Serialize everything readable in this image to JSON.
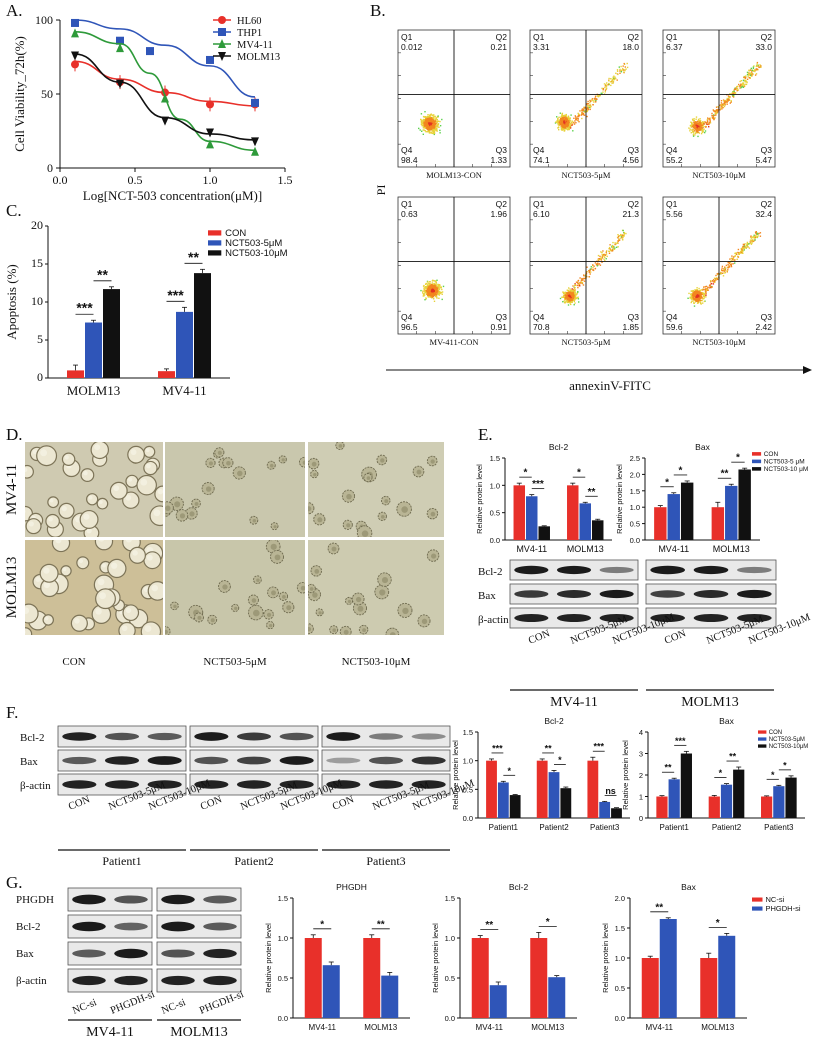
{
  "figure": {
    "panel_labels": {
      "A": "A.",
      "B": "B.",
      "C": "C.",
      "D": "D.",
      "E": "E.",
      "F": "F.",
      "G": "G."
    }
  },
  "panel_a": {
    "chart_data": {
      "type": "line",
      "title": "",
      "xlabel": "Log[NCT-503 concentration(μM)]",
      "ylabel": "Cell Viability_72h(%)",
      "xlim": [
        0,
        1.5
      ],
      "ylim": [
        0,
        100
      ],
      "x_ticks": [
        "0.0",
        "0.5",
        "1.0",
        "1.5"
      ],
      "y_ticks": [
        "0",
        "50",
        "100"
      ],
      "legend_position": "top-right",
      "series": [
        {
          "name": "HL60",
          "color": "#e8302a",
          "marker": "circle",
          "x": [
            0.1,
            0.4,
            0.7,
            1.0,
            1.3
          ],
          "y": [
            70,
            58,
            51,
            43,
            43
          ],
          "fit": [
            [
              0.1,
              72
            ],
            [
              0.4,
              60
            ],
            [
              0.7,
              51
            ],
            [
              1.0,
              45
            ],
            [
              1.3,
              42
            ]
          ]
        },
        {
          "name": "THP1",
          "color": "#2f55b8",
          "marker": "square",
          "x": [
            0.1,
            0.4,
            0.6,
            1.0,
            1.3
          ],
          "y": [
            98,
            86,
            79,
            73,
            44
          ],
          "fit": [
            [
              0.1,
              100
            ],
            [
              0.4,
              94
            ],
            [
              0.7,
              83
            ],
            [
              1.0,
              69
            ],
            [
              1.3,
              48
            ]
          ]
        },
        {
          "name": "MV4-11",
          "color": "#2e9a3a",
          "marker": "triangle-up",
          "x": [
            0.1,
            0.4,
            0.7,
            1.0,
            1.3
          ],
          "y": [
            91,
            81,
            47,
            16,
            11
          ],
          "fit": [
            [
              0.1,
              92
            ],
            [
              0.4,
              84
            ],
            [
              0.6,
              64
            ],
            [
              0.8,
              33
            ],
            [
              1.0,
              18
            ],
            [
              1.3,
              12
            ]
          ]
        },
        {
          "name": "MOLM13",
          "color": "#111111",
          "marker": "triangle-down",
          "x": [
            0.1,
            0.4,
            0.7,
            1.0,
            1.3
          ],
          "y": [
            76,
            57,
            32,
            24,
            18
          ],
          "fit": [
            [
              0.1,
              77
            ],
            [
              0.4,
              58
            ],
            [
              0.7,
              34
            ],
            [
              1.0,
              23
            ],
            [
              1.3,
              19
            ]
          ]
        }
      ]
    }
  },
  "panel_b": {
    "xlabel": "annexinV-FITC",
    "ylabel": "PI",
    "plots": [
      {
        "label": "MOLM13-CON",
        "q1": "0.012",
        "q2": "0.21",
        "q3": "1.33",
        "q4": "98.4"
      },
      {
        "label": "NCT503-5μM",
        "q1": "3.31",
        "q2": "18.0",
        "q3": "4.56",
        "q4": "74.1"
      },
      {
        "label": "NCT503-10μM",
        "q1": "6.37",
        "q2": "33.0",
        "q3": "5.47",
        "q4": "55.2"
      },
      {
        "label": "MV-411-CON",
        "q1": "0.63",
        "q2": "1.96",
        "q3": "0.91",
        "q4": "96.5"
      },
      {
        "label": "NCT503-5μM",
        "q1": "6.10",
        "q2": "21.3",
        "q3": "1.85",
        "q4": "70.8"
      },
      {
        "label": "NCT503-10μM",
        "q1": "5.56",
        "q2": "32.4",
        "q3": "2.42",
        "q4": "59.6"
      }
    ],
    "quadrant_names": [
      "Q1",
      "Q2",
      "Q3",
      "Q4"
    ]
  },
  "panel_c": {
    "chart_data": {
      "type": "bar",
      "ylabel": "Apoptosis (%)",
      "ylim": [
        0,
        20
      ],
      "y_ticks": [
        "0",
        "5",
        "10",
        "15",
        "20"
      ],
      "categories": [
        "MOLM13",
        "MV4-11"
      ],
      "series": [
        {
          "name": "CON",
          "color": "#e8302a",
          "values": [
            1.0,
            0.9
          ],
          "errors": [
            0.7,
            0.3
          ]
        },
        {
          "name": "NCT503-5μM",
          "color": "#2f55b8",
          "values": [
            7.3,
            8.7
          ],
          "errors": [
            0.3,
            0.6
          ]
        },
        {
          "name": "NCT503-10μM",
          "color": "#111111",
          "values": [
            11.7,
            13.8
          ],
          "errors": [
            0.3,
            0.5
          ]
        }
      ],
      "significance": [
        [
          "***",
          "**"
        ],
        [
          "***",
          "**"
        ]
      ]
    }
  },
  "panel_d": {
    "row_labels": [
      "MV4-11",
      "MOLM13"
    ],
    "col_labels": [
      "CON",
      "NCT503-5μM",
      "NCT503-10μM"
    ]
  },
  "panel_e": {
    "charts": [
      {
        "chart_data": {
          "type": "bar",
          "title": "Bcl-2",
          "ylabel": "Relative protein level",
          "ylim": [
            0,
            1.5
          ],
          "y_ticks": [
            "0.0",
            "0.5",
            "1.0",
            "1.5"
          ],
          "categories": [
            "MV4-11",
            "MOLM13"
          ],
          "series": [
            {
              "name": "CON",
              "color": "#e8302a",
              "values": [
                1.0,
                1.0
              ],
              "errors": [
                0.04,
                0.04
              ]
            },
            {
              "name": "NCT503-5μM",
              "color": "#2f55b8",
              "values": [
                0.8,
                0.67
              ],
              "errors": [
                0.03,
                0.02
              ]
            },
            {
              "name": "NCT503-10μM",
              "color": "#111111",
              "values": [
                0.25,
                0.36
              ],
              "errors": [
                0.01,
                0.02
              ]
            }
          ],
          "significance": [
            [
              "*",
              "***"
            ],
            [
              "*",
              "**"
            ]
          ]
        }
      },
      {
        "chart_data": {
          "type": "bar",
          "title": "Bax",
          "ylabel": "Relative protein level",
          "ylim": [
            0,
            2.5
          ],
          "y_ticks": [
            "0.0",
            "0.5",
            "1.0",
            "1.5",
            "2.0",
            "2.5"
          ],
          "categories": [
            "MV4-11",
            "MOLM13"
          ],
          "series": [
            {
              "name": "CON",
              "color": "#e8302a",
              "values": [
                1.0,
                1.0
              ],
              "errors": [
                0.05,
                0.15
              ]
            },
            {
              "name": "NCT503-5μM",
              "color": "#2f55b8",
              "values": [
                1.4,
                1.65
              ],
              "errors": [
                0.04,
                0.05
              ]
            },
            {
              "name": "NCT503-10μM",
              "color": "#111111",
              "values": [
                1.75,
                2.15
              ],
              "errors": [
                0.05,
                0.04
              ]
            }
          ],
          "significance": [
            [
              "*",
              "*"
            ],
            [
              "**",
              "*"
            ]
          ]
        }
      }
    ],
    "legend": [
      "CON",
      "NCT503-5 μM",
      "NCT503-10 μM"
    ],
    "blot_rows": [
      "Bcl-2",
      "Bax",
      "β-actin"
    ],
    "lanes": [
      "CON",
      "NCT503-5μM",
      "NCT503-10μM"
    ],
    "groups": [
      "MV4-11",
      "MOLM13"
    ]
  },
  "panel_f": {
    "blot_rows": [
      "Bcl-2",
      "Bax",
      "β-actin"
    ],
    "lanes": [
      "CON",
      "NCT503-5μM",
      "NCT503-10μM"
    ],
    "groups": [
      "Patient1",
      "Patient2",
      "Patient3"
    ],
    "charts": [
      {
        "chart_data": {
          "type": "bar",
          "title": "Bcl-2",
          "ylabel": "Relative protein level",
          "ylim": [
            0,
            1.5
          ],
          "y_ticks": [
            "0.0",
            "0.5",
            "1.0",
            "1.5"
          ],
          "categories": [
            "Patient1",
            "Patient2",
            "Patient3"
          ],
          "series": [
            {
              "name": "CON",
              "color": "#e8302a",
              "values": [
                1.0,
                1.0,
                1.0
              ],
              "errors": [
                0.03,
                0.03,
                0.06
              ]
            },
            {
              "name": "NCT503-5μM",
              "color": "#2f55b8",
              "values": [
                0.62,
                0.8,
                0.28
              ],
              "errors": [
                0.02,
                0.03,
                0.01
              ]
            },
            {
              "name": "NCT503-10μM",
              "color": "#111111",
              "values": [
                0.4,
                0.52,
                0.17
              ],
              "errors": [
                0.01,
                0.02,
                0.01
              ]
            }
          ],
          "significance": [
            [
              "***",
              "*"
            ],
            [
              "**",
              "*"
            ],
            [
              "***",
              "ns"
            ]
          ]
        }
      },
      {
        "chart_data": {
          "type": "bar",
          "title": "Bax",
          "ylabel": "Relative protein level",
          "ylim": [
            0,
            4
          ],
          "y_ticks": [
            "0",
            "1",
            "2",
            "3",
            "4"
          ],
          "categories": [
            "Patient1",
            "Patient2",
            "Patient3"
          ],
          "series": [
            {
              "name": "CON",
              "color": "#e8302a",
              "values": [
                1.0,
                1.0,
                1.0
              ],
              "errors": [
                0.04,
                0.05,
                0.03
              ]
            },
            {
              "name": "NCT503-5μM",
              "color": "#2f55b8",
              "values": [
                1.8,
                1.55,
                1.48
              ],
              "errors": [
                0.05,
                0.05,
                0.04
              ]
            },
            {
              "name": "NCT503-10μM",
              "color": "#111111",
              "values": [
                3.0,
                2.25,
                1.88
              ],
              "errors": [
                0.1,
                0.12,
                0.08
              ]
            }
          ],
          "significance": [
            [
              "**",
              "***"
            ],
            [
              "*",
              "**"
            ],
            [
              "*",
              "*"
            ]
          ]
        }
      }
    ],
    "legend": [
      "CON",
      "NCT503-5μM",
      "NCT503-10μM"
    ]
  },
  "panel_g": {
    "blot_rows": [
      "PHGDH",
      "Bcl-2",
      "Bax",
      "β-actin"
    ],
    "lanes": [
      "NC-si",
      "PHGDH-si"
    ],
    "groups": [
      "MV4-11",
      "MOLM13"
    ],
    "charts": [
      {
        "chart_data": {
          "type": "bar",
          "title": "PHGDH",
          "ylabel": "Relative protein level",
          "ylim": [
            0,
            1.5
          ],
          "y_ticks": [
            "0.0",
            "0.5",
            "1.0",
            "1.5"
          ],
          "categories": [
            "MV4-11",
            "MOLM13"
          ],
          "series": [
            {
              "name": "NC-si",
              "color": "#e8302a",
              "values": [
                1.0,
                1.0
              ],
              "errors": [
                0.04,
                0.04
              ]
            },
            {
              "name": "PHGDH-si",
              "color": "#2f55b8",
              "values": [
                0.66,
                0.53
              ],
              "errors": [
                0.04,
                0.04
              ]
            }
          ],
          "significance": [
            "*",
            "**"
          ]
        }
      },
      {
        "chart_data": {
          "type": "bar",
          "title": "Bcl-2",
          "ylabel": "Relative protein level",
          "ylim": [
            0,
            1.5
          ],
          "y_ticks": [
            "0.0",
            "0.5",
            "1.0",
            "1.5"
          ],
          "categories": [
            "MV4-11",
            "MOLM13"
          ],
          "series": [
            {
              "name": "NC-si",
              "color": "#e8302a",
              "values": [
                1.0,
                1.0
              ],
              "errors": [
                0.03,
                0.07
              ]
            },
            {
              "name": "PHGDH-si",
              "color": "#2f55b8",
              "values": [
                0.41,
                0.51
              ],
              "errors": [
                0.04,
                0.02
              ]
            }
          ],
          "significance": [
            "**",
            "*"
          ]
        }
      },
      {
        "chart_data": {
          "type": "bar",
          "title": "Bax",
          "ylabel": "Relative protein level",
          "ylim": [
            0,
            2.0
          ],
          "y_ticks": [
            "0.0",
            "0.5",
            "1.0",
            "1.5",
            "2.0"
          ],
          "categories": [
            "MV4-11",
            "MOLM13"
          ],
          "series": [
            {
              "name": "NC-si",
              "color": "#e8302a",
              "values": [
                1.0,
                1.0
              ],
              "errors": [
                0.03,
                0.08
              ]
            },
            {
              "name": "PHGDH-si",
              "color": "#2f55b8",
              "values": [
                1.65,
                1.37
              ],
              "errors": [
                0.02,
                0.04
              ]
            }
          ],
          "significance": [
            "**",
            "*"
          ]
        }
      }
    ],
    "legend": [
      "NC-si",
      "PHGDH-si"
    ]
  }
}
